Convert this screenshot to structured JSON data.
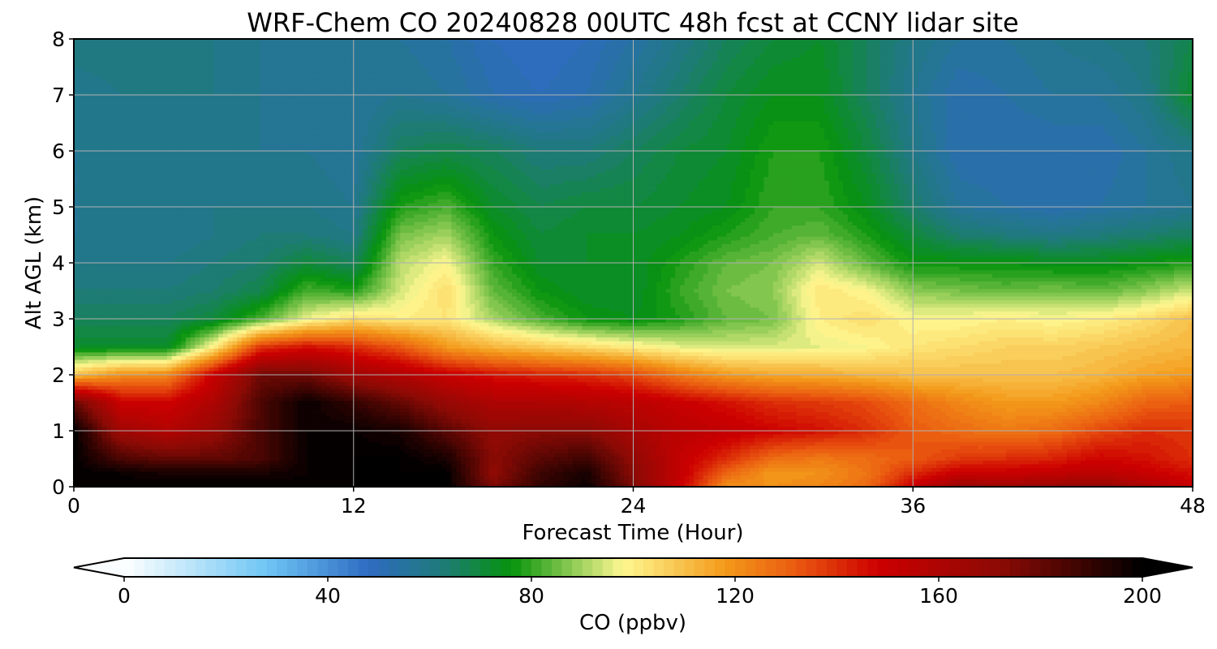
{
  "chart_data": {
    "type": "contour",
    "title": "WRF-Chem CO  20240828 00UTC 48h fcst at CCNY lidar site",
    "xlabel": "Forecast Time (Hour)",
    "ylabel": "Alt AGL (km)",
    "xlim": [
      0,
      48
    ],
    "ylim": [
      0,
      8
    ],
    "xticks": [
      0,
      12,
      24,
      36,
      48
    ],
    "yticks": [
      0,
      1,
      2,
      3,
      4,
      5,
      6,
      7,
      8
    ],
    "grid": true,
    "colorbar": {
      "label": "CO  (ppbv)",
      "min": 0,
      "max": 200,
      "ticks": [
        0,
        40,
        80,
        120,
        160,
        200
      ],
      "extend": "both",
      "levels": 100,
      "stops": [
        {
          "v": 0,
          "color": "#ffffff"
        },
        {
          "v": 28,
          "color": "#6ec6f4"
        },
        {
          "v": 48,
          "color": "#2f6bc2"
        },
        {
          "v": 62,
          "color": "#1f7a7c"
        },
        {
          "v": 76,
          "color": "#06930c"
        },
        {
          "v": 98,
          "color": "#fff891"
        },
        {
          "v": 118,
          "color": "#f39a1a"
        },
        {
          "v": 132,
          "color": "#ea5a10"
        },
        {
          "v": 148,
          "color": "#cd0000"
        },
        {
          "v": 172,
          "color": "#8c0a05"
        },
        {
          "v": 200,
          "color": "#000000"
        }
      ]
    },
    "field": {
      "x": [
        0,
        2,
        4,
        6,
        8,
        10,
        12,
        14,
        16,
        18,
        20,
        22,
        24,
        26,
        28,
        30,
        32,
        34,
        36,
        38,
        40,
        42,
        44,
        46,
        48
      ],
      "y": [
        0,
        0.25,
        0.5,
        1,
        1.5,
        2,
        2.5,
        3,
        3.5,
        4,
        4.5,
        5,
        6,
        7,
        8
      ],
      "values_ppbv": [
        [
          200,
          200,
          200,
          200,
          200,
          200,
          200,
          200,
          200,
          175,
          190,
          198,
          175,
          150,
          120,
          120,
          122,
          128,
          150,
          168,
          165,
          168,
          170,
          160,
          150
        ],
        [
          200,
          198,
          195,
          195,
          195,
          198,
          200,
          200,
          200,
          170,
          188,
          195,
          172,
          152,
          130,
          118,
          120,
          126,
          140,
          150,
          150,
          152,
          155,
          150,
          145
        ],
        [
          200,
          185,
          180,
          180,
          185,
          198,
          200,
          200,
          195,
          172,
          182,
          188,
          170,
          152,
          140,
          128,
          125,
          128,
          132,
          138,
          140,
          142,
          148,
          145,
          140
        ],
        [
          200,
          165,
          158,
          168,
          185,
          198,
          198,
          195,
          182,
          170,
          172,
          172,
          162,
          155,
          152,
          148,
          145,
          140,
          132,
          128,
          125,
          128,
          135,
          140,
          138
        ],
        [
          180,
          150,
          148,
          160,
          185,
          198,
          190,
          180,
          168,
          160,
          160,
          158,
          155,
          150,
          145,
          140,
          138,
          135,
          128,
          122,
          118,
          118,
          122,
          130,
          132
        ],
        [
          110,
          120,
          122,
          150,
          178,
          178,
          165,
          158,
          150,
          145,
          142,
          140,
          135,
          125,
          118,
          115,
          114,
          112,
          110,
          110,
          110,
          110,
          112,
          116,
          118
        ],
        [
          72,
          72,
          72,
          100,
          138,
          145,
          140,
          132,
          118,
          112,
          108,
          104,
          100,
          96,
          94,
          95,
          96,
          98,
          102,
          104,
          106,
          106,
          108,
          110,
          112
        ],
        [
          66,
          66,
          66,
          70,
          82,
          96,
          104,
          100,
          102,
          90,
          82,
          76,
          74,
          78,
          84,
          86,
          100,
          104,
          98,
          98,
          100,
          98,
          100,
          104,
          110
        ],
        [
          62,
          62,
          62,
          64,
          68,
          82,
          78,
          94,
          104,
          84,
          76,
          72,
          72,
          80,
          86,
          88,
          102,
          98,
          88,
          86,
          84,
          86,
          84,
          88,
          94
        ],
        [
          60,
          60,
          60,
          62,
          64,
          70,
          66,
          92,
          98,
          80,
          72,
          72,
          72,
          78,
          84,
          86,
          94,
          84,
          76,
          76,
          76,
          74,
          74,
          76,
          78
        ],
        [
          58,
          58,
          58,
          60,
          62,
          62,
          60,
          86,
          90,
          76,
          70,
          72,
          72,
          74,
          78,
          82,
          84,
          78,
          70,
          64,
          62,
          60,
          62,
          64,
          66
        ],
        [
          58,
          58,
          58,
          60,
          60,
          60,
          58,
          78,
          82,
          72,
          68,
          70,
          70,
          72,
          74,
          80,
          80,
          74,
          64,
          56,
          54,
          52,
          54,
          56,
          58
        ],
        [
          58,
          58,
          58,
          58,
          58,
          58,
          56,
          66,
          68,
          66,
          62,
          62,
          66,
          70,
          72,
          78,
          78,
          70,
          60,
          52,
          52,
          52,
          52,
          56,
          60
        ],
        [
          58,
          60,
          60,
          60,
          58,
          56,
          56,
          58,
          56,
          52,
          50,
          52,
          58,
          64,
          70,
          74,
          74,
          66,
          58,
          52,
          54,
          56,
          56,
          60,
          72
        ],
        [
          62,
          62,
          62,
          60,
          58,
          58,
          58,
          56,
          54,
          50,
          48,
          50,
          54,
          60,
          66,
          70,
          72,
          66,
          60,
          56,
          56,
          58,
          60,
          62,
          68
        ]
      ]
    }
  }
}
